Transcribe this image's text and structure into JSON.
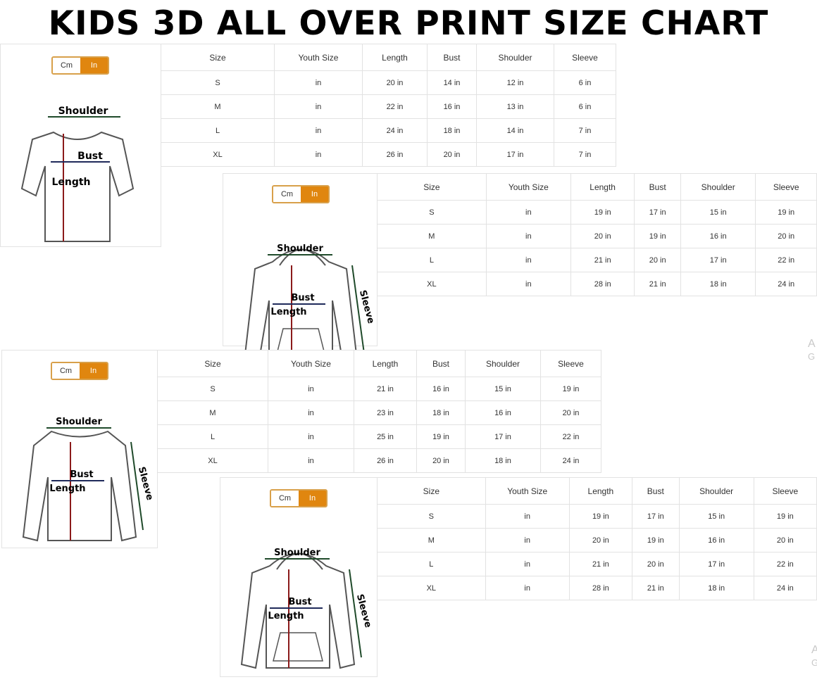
{
  "title": "KIDS 3D ALL OVER PRINT SIZE CHART",
  "colors": {
    "toggle_active": "#e0860f",
    "toggle_border": "#d8a04a",
    "length_arrow": "#8b1a1a",
    "bust_arrow": "#1f2a5a",
    "shoulder_arrow": "#1f4a2a"
  },
  "toggle": {
    "cm": "Cm",
    "in": "In"
  },
  "labels": {
    "shoulder": "Shoulder",
    "bust": "Bust",
    "length": "Length",
    "sleeve": "Sleeve"
  },
  "headers": [
    "Size",
    "Youth Size",
    "Length",
    "Bust",
    "Shoulder",
    "Sleeve"
  ],
  "panels": [
    {
      "garment": "t-shirt",
      "rows": [
        [
          "S",
          "in",
          "20 in",
          "14 in",
          "12 in",
          "6 in"
        ],
        [
          "M",
          "in",
          "22 in",
          "16 in",
          "13 in",
          "6 in"
        ],
        [
          "L",
          "in",
          "24 in",
          "18 in",
          "14 in",
          "7 in"
        ],
        [
          "XL",
          "in",
          "26 in",
          "20 in",
          "17 in",
          "7 in"
        ]
      ]
    },
    {
      "garment": "zip-hoodie",
      "rows": [
        [
          "S",
          "in",
          "19 in",
          "17 in",
          "15 in",
          "19 in"
        ],
        [
          "M",
          "in",
          "20 in",
          "19 in",
          "16 in",
          "20 in"
        ],
        [
          "L",
          "in",
          "21 in",
          "20 in",
          "17 in",
          "22 in"
        ],
        [
          "XL",
          "in",
          "28 in",
          "21 in",
          "18 in",
          "24 in"
        ]
      ]
    },
    {
      "garment": "long-sleeve-shirt",
      "rows": [
        [
          "S",
          "in",
          "21 in",
          "16 in",
          "15 in",
          "19 in"
        ],
        [
          "M",
          "in",
          "23 in",
          "18 in",
          "16 in",
          "20 in"
        ],
        [
          "L",
          "in",
          "25 in",
          "19 in",
          "17 in",
          "22 in"
        ],
        [
          "XL",
          "in",
          "26 in",
          "20 in",
          "18 in",
          "24 in"
        ]
      ]
    },
    {
      "garment": "pullover-hoodie",
      "rows": [
        [
          "S",
          "in",
          "19 in",
          "17 in",
          "15 in",
          "19 in"
        ],
        [
          "M",
          "in",
          "20 in",
          "19 in",
          "16 in",
          "20 in"
        ],
        [
          "L",
          "in",
          "21 in",
          "20 in",
          "17 in",
          "22 in"
        ],
        [
          "XL",
          "in",
          "28 in",
          "21 in",
          "18 in",
          "24 in"
        ]
      ]
    }
  ],
  "watermark_fragments": [
    [
      "A",
      "G"
    ],
    [
      "A",
      "G"
    ]
  ]
}
